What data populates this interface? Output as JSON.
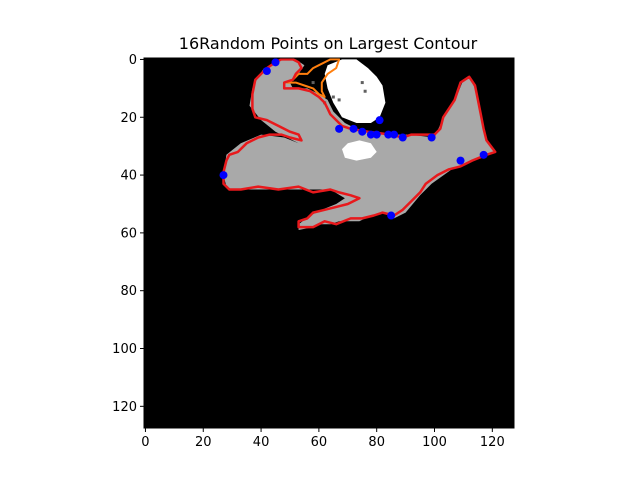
{
  "chart_data": {
    "type": "scatter",
    "title": "16Random Points on Largest Contour",
    "xlabel": "",
    "ylabel": "",
    "xlim": [
      -0.5,
      127.5
    ],
    "ylim": [
      127.5,
      -0.5
    ],
    "x_ticks": [
      0,
      20,
      40,
      60,
      80,
      100,
      120
    ],
    "y_ticks": [
      0,
      20,
      40,
      60,
      80,
      100,
      120
    ],
    "grid": false,
    "colors": {
      "background": "#000000",
      "mask": "#a9a9a9",
      "highlight": "#ffffff",
      "largest_contour": "#e8191c",
      "other_contour": "#ff7f0e",
      "points": "#0000ff"
    },
    "image_regions": {
      "gray_mask": [
        [
          44,
          2
        ],
        [
          47,
          0
        ],
        [
          52,
          0
        ],
        [
          55,
          2
        ],
        [
          53,
          5
        ],
        [
          50,
          8
        ],
        [
          51,
          10
        ],
        [
          56,
          10
        ],
        [
          60,
          12
        ],
        [
          63,
          14
        ],
        [
          65,
          18
        ],
        [
          69,
          22
        ],
        [
          75,
          25
        ],
        [
          84,
          26
        ],
        [
          91,
          26
        ],
        [
          100,
          27
        ],
        [
          104,
          18
        ],
        [
          108,
          12
        ],
        [
          110,
          7
        ],
        [
          112,
          6
        ],
        [
          114,
          10
        ],
        [
          116,
          20
        ],
        [
          118,
          28
        ],
        [
          121,
          32
        ],
        [
          113,
          35
        ],
        [
          106,
          38
        ],
        [
          99,
          43
        ],
        [
          95,
          47
        ],
        [
          90,
          53
        ],
        [
          86,
          55
        ],
        [
          82,
          53
        ],
        [
          78,
          54
        ],
        [
          74,
          56
        ],
        [
          67,
          56
        ],
        [
          64,
          57
        ],
        [
          60,
          57
        ],
        [
          58,
          58
        ],
        [
          53,
          59
        ],
        [
          53,
          57
        ],
        [
          57,
          54
        ],
        [
          61,
          52
        ],
        [
          66,
          50
        ],
        [
          69,
          48
        ],
        [
          64,
          45
        ],
        [
          57,
          45
        ],
        [
          51,
          45
        ],
        [
          40,
          45
        ],
        [
          30,
          45
        ],
        [
          28,
          44
        ],
        [
          27,
          40
        ],
        [
          28,
          33
        ],
        [
          33,
          29
        ],
        [
          40,
          26
        ],
        [
          48,
          27
        ],
        [
          53,
          29
        ],
        [
          45,
          25
        ],
        [
          40,
          21
        ],
        [
          36,
          16
        ],
        [
          37,
          10
        ],
        [
          39,
          6
        ],
        [
          41,
          3
        ]
      ],
      "white_blobs": [
        [
          [
            63,
            2
          ],
          [
            68,
            0
          ],
          [
            73,
            0
          ],
          [
            77,
            3
          ],
          [
            80,
            6
          ],
          [
            82,
            9
          ],
          [
            83,
            15
          ],
          [
            81,
            20
          ],
          [
            78,
            22
          ],
          [
            73,
            22
          ],
          [
            68,
            20
          ],
          [
            65,
            15
          ],
          [
            63,
            10
          ],
          [
            62,
            5
          ]
        ],
        [
          [
            70,
            29
          ],
          [
            74,
            28
          ],
          [
            78,
            29
          ],
          [
            80,
            32
          ],
          [
            78,
            34
          ],
          [
            73,
            35
          ],
          [
            69,
            34
          ],
          [
            68,
            31
          ]
        ]
      ],
      "small_dots": [
        [
          58,
          8
        ],
        [
          65,
          13
        ],
        [
          67,
          14
        ],
        [
          62,
          15
        ],
        [
          75,
          8
        ],
        [
          76,
          11
        ]
      ]
    },
    "contours": {
      "largest": [
        [
          45,
          1
        ],
        [
          47,
          0
        ],
        [
          51,
          0
        ],
        [
          53,
          1
        ],
        [
          54,
          3
        ],
        [
          52,
          5
        ],
        [
          51,
          7
        ],
        [
          48,
          8
        ],
        [
          48,
          10
        ],
        [
          53,
          10
        ],
        [
          57,
          11
        ],
        [
          60,
          13
        ],
        [
          62,
          15
        ],
        [
          63,
          17
        ],
        [
          64,
          19
        ],
        [
          66,
          21
        ],
        [
          68,
          23
        ],
        [
          71,
          24
        ],
        [
          77,
          25
        ],
        [
          85,
          26
        ],
        [
          89,
          27
        ],
        [
          92,
          26
        ],
        [
          100,
          26
        ],
        [
          102,
          24
        ],
        [
          103,
          20
        ],
        [
          105,
          17
        ],
        [
          107,
          14
        ],
        [
          108,
          11
        ],
        [
          109,
          8
        ],
        [
          112,
          6
        ],
        [
          114,
          9
        ],
        [
          115,
          14
        ],
        [
          116,
          19
        ],
        [
          117,
          24
        ],
        [
          118,
          28
        ],
        [
          121,
          32
        ],
        [
          118,
          33
        ],
        [
          113,
          35
        ],
        [
          109,
          37
        ],
        [
          105,
          38
        ],
        [
          101,
          40
        ],
        [
          97,
          43
        ],
        [
          95,
          46
        ],
        [
          92,
          49
        ],
        [
          89,
          52
        ],
        [
          86,
          54
        ],
        [
          82,
          53
        ],
        [
          79,
          54
        ],
        [
          75,
          55
        ],
        [
          71,
          55
        ],
        [
          66,
          57
        ],
        [
          62,
          56
        ],
        [
          58,
          58
        ],
        [
          53,
          58
        ],
        [
          53,
          56
        ],
        [
          56,
          55
        ],
        [
          58,
          53
        ],
        [
          62,
          52
        ],
        [
          66,
          51
        ],
        [
          70,
          50
        ],
        [
          74,
          48
        ],
        [
          71,
          47
        ],
        [
          67,
          46
        ],
        [
          64,
          45
        ],
        [
          58,
          46
        ],
        [
          53,
          44
        ],
        [
          46,
          45
        ],
        [
          39,
          44
        ],
        [
          33,
          45
        ],
        [
          29,
          45
        ],
        [
          27,
          43
        ],
        [
          27,
          39
        ],
        [
          28,
          35
        ],
        [
          29,
          33
        ],
        [
          32,
          32
        ],
        [
          35,
          29
        ],
        [
          39,
          27
        ],
        [
          43,
          26
        ],
        [
          47,
          26
        ],
        [
          50,
          27
        ],
        [
          54,
          28
        ],
        [
          53,
          26
        ],
        [
          50,
          25
        ],
        [
          46,
          23
        ],
        [
          42,
          21
        ],
        [
          38,
          20
        ],
        [
          37,
          17
        ],
        [
          37,
          12
        ],
        [
          38,
          7
        ],
        [
          40,
          5
        ],
        [
          42,
          3
        ]
      ],
      "other": [
        [
          60,
          2
        ],
        [
          64,
          0
        ],
        [
          67,
          0
        ],
        [
          66,
          3
        ],
        [
          63,
          5
        ],
        [
          61,
          8
        ],
        [
          61,
          11
        ],
        [
          62,
          13
        ],
        [
          60,
          12
        ],
        [
          58,
          10
        ],
        [
          55,
          9
        ],
        [
          52,
          8
        ],
        [
          49,
          8
        ],
        [
          51,
          7
        ],
        [
          53,
          5
        ],
        [
          56,
          5
        ],
        [
          58,
          3
        ]
      ]
    },
    "points": {
      "x": [
        27,
        42,
        45,
        67,
        72,
        75,
        78,
        80,
        81,
        84,
        86,
        89,
        99,
        109,
        117,
        85
      ],
      "y": [
        40,
        4,
        1,
        24,
        24,
        25,
        26,
        26,
        21,
        26,
        26,
        27,
        27,
        35,
        33,
        54
      ]
    }
  }
}
